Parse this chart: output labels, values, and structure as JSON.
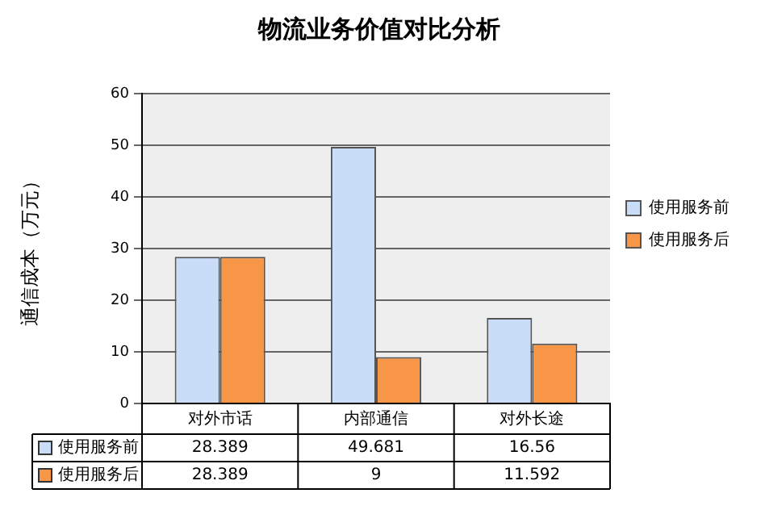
{
  "chart_data": {
    "type": "bar",
    "title": "物流业务价值对比分析",
    "ylabel": "通信成本（万元）",
    "categories": [
      "对外市话",
      "内部通信",
      "对外长途"
    ],
    "series": [
      {
        "name": "使用服务前",
        "color": "#c9ddf8",
        "values": [
          28.389,
          49.681,
          16.56
        ]
      },
      {
        "name": "使用服务后",
        "color": "#f79646",
        "values": [
          28.389,
          9,
          11.592
        ]
      }
    ],
    "ylim": [
      0,
      60
    ],
    "yticks": [
      0,
      10,
      20,
      30,
      40,
      50,
      60
    ],
    "grid": "y",
    "legend": "right",
    "data_labels": true
  }
}
